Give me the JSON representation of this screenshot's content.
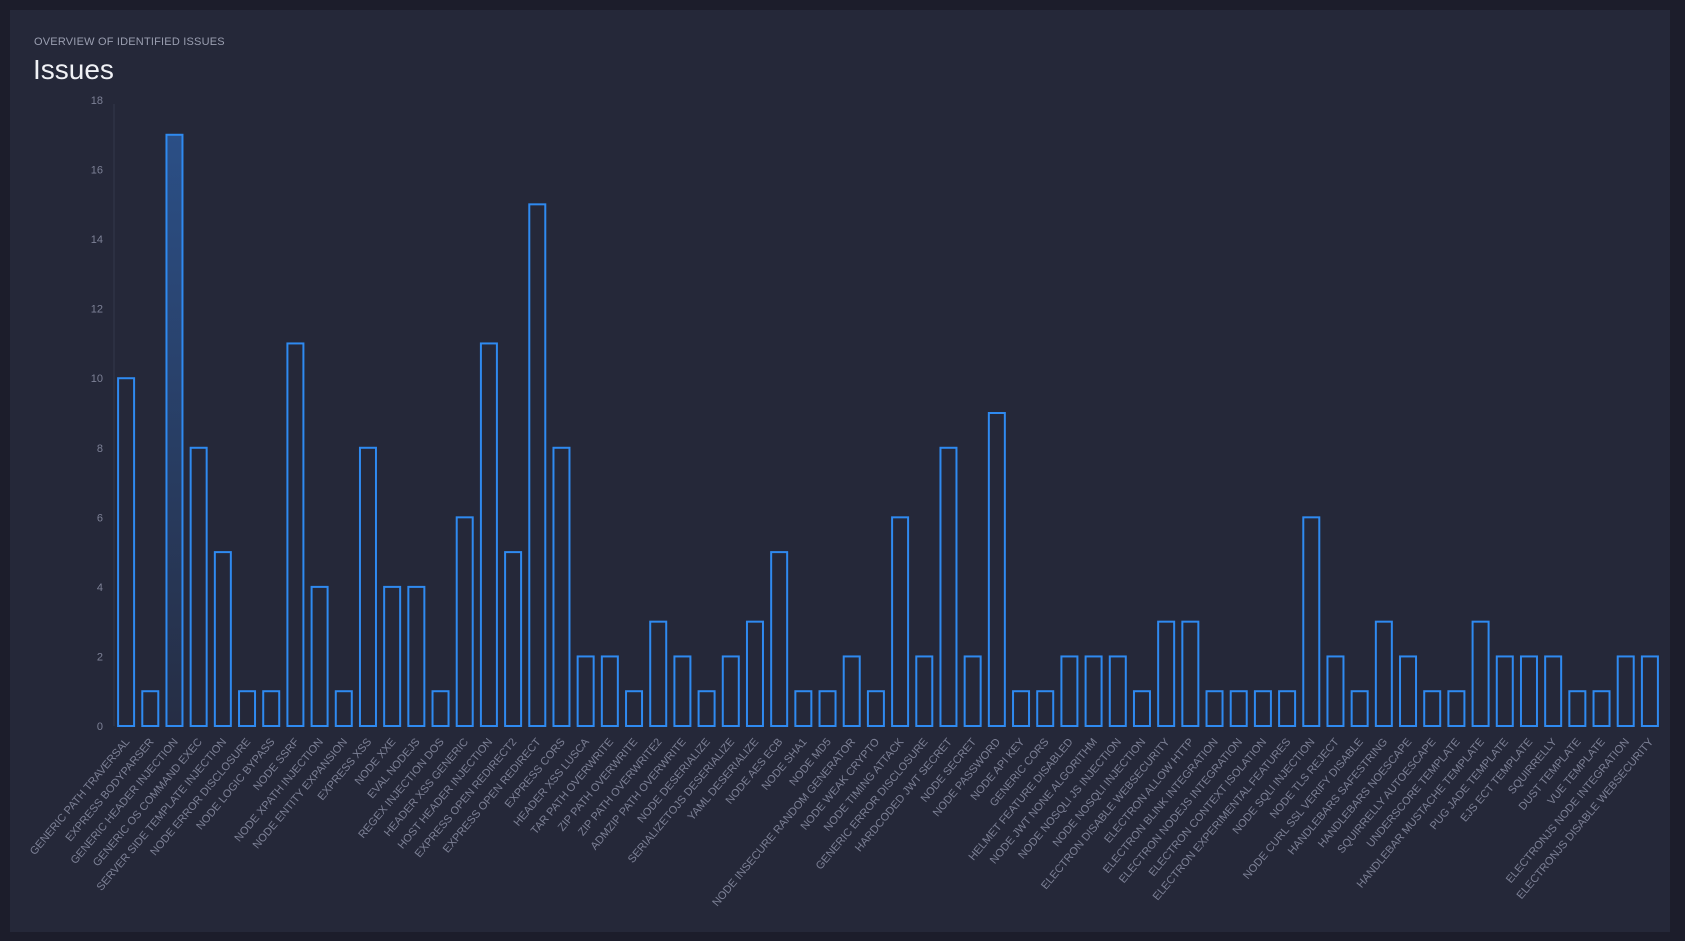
{
  "header": {
    "subtitle": "OVERVIEW OF IDENTIFIED ISSUES",
    "title": "Issues"
  },
  "colors": {
    "bar_stroke": "#2f8af0",
    "bar_highlight_fill": "#2a4a7a",
    "background": "#1c1d2b",
    "panel": "#252839"
  },
  "chart_data": {
    "type": "bar",
    "title": "Issues",
    "subtitle": "OVERVIEW OF IDENTIFIED ISSUES",
    "xlabel": "",
    "ylabel": "",
    "ylim": [
      0,
      18
    ],
    "yticks": [
      0,
      2,
      4,
      6,
      8,
      10,
      12,
      14,
      16,
      18
    ],
    "grid": false,
    "highlighted_index": 2,
    "categories": [
      "GENERIC PATH TRAVERSAL",
      "EXPRESS BODYPARSER",
      "GENERIC HEADER INJECTION",
      "GENERIC OS COMMAND EXEC",
      "SERVER SIDE TEMPLATE INJECTION",
      "NODE ERROR DISCLOSURE",
      "NODE LOGIC BYPASS",
      "NODE SSRF",
      "NODE XPATH INJECTION",
      "NODE ENTITY EXPANSION",
      "EXPRESS XSS",
      "NODE XXE",
      "EVAL NODEJS",
      "REGEX INJECTION DOS",
      "HEADER XSS GENERIC",
      "HOST HEADER INJECTION",
      "EXPRESS OPEN REDIRECT2",
      "EXPRESS OPEN REDIRECT",
      "EXPRESS CORS",
      "HEADER XSS LUSCA",
      "TAR PATH OVERWRITE",
      "ZIP PATH OVERWRITE",
      "ZIP PATH OVERWRITE2",
      "ADMZIP PATH OVERWRITE",
      "NODE DESERIALIZE",
      "SERIALIZETOJS DESERIALIZE",
      "YAML DESERIALIZE",
      "NODE AES ECB",
      "NODE SHA1",
      "NODE MD5",
      "NODE INSECURE RANDOM GENERATOR",
      "NODE WEAK CRYPTO",
      "NODE TIMING ATTACK",
      "GENERIC ERROR DISCLOSURE",
      "HARDCODED JWT SECRET",
      "NODE SECRET",
      "NODE PASSWORD",
      "NODE API KEY",
      "GENERIC CORS",
      "HELMET FEATURE DISABLED",
      "NODE JWT NONE ALGORITHM",
      "NODE NOSQLI JS INJECTION",
      "NODE NOSQLI INJECTION",
      "ELECTRON DISABLE WEBSECURITY",
      "ELECTRON ALLOW HTTP",
      "ELECTRON BLINK INTEGRATION",
      "ELECTRON NODEJS INTEGRATION",
      "ELECTRON CONTEXT ISOLATION",
      "ELECTRON EXPERIMENTAL FEATURES",
      "NODE SQLI INJECTION",
      "NODE TLS REJECT",
      "NODE CURL SSL VERIFY DISABLE",
      "HANDLEBARS SAFESTRING",
      "HANDLEBARS NOESCAPE",
      "SQUIRRELLY AUTOESCAPE",
      "UNDERSCORE TEMPLATE",
      "HANDLEBAR MUSTACHE TEMPLATE",
      "PUG JADE TEMPLATE",
      "EJS ECT TEMPLATE",
      "SQUIRRELLY",
      "DUST TEMPLATE",
      "VUE TEMPLATE",
      "ELECTRONJS NODE INTEGRATION",
      "ELECTRONJS DISABLE WEBSECURITY"
    ],
    "values": [
      10,
      1,
      17,
      8,
      5,
      1,
      1,
      11,
      4,
      1,
      8,
      4,
      4,
      1,
      6,
      11,
      5,
      15,
      8,
      2,
      2,
      1,
      3,
      2,
      1,
      2,
      3,
      5,
      1,
      1,
      2,
      1,
      6,
      2,
      8,
      2,
      9,
      1,
      1,
      2,
      2,
      2,
      1,
      3,
      3,
      1,
      1,
      1,
      1,
      6,
      2,
      1,
      3,
      2,
      1,
      1,
      3,
      2,
      2,
      2,
      1,
      1,
      2,
      2
    ]
  }
}
